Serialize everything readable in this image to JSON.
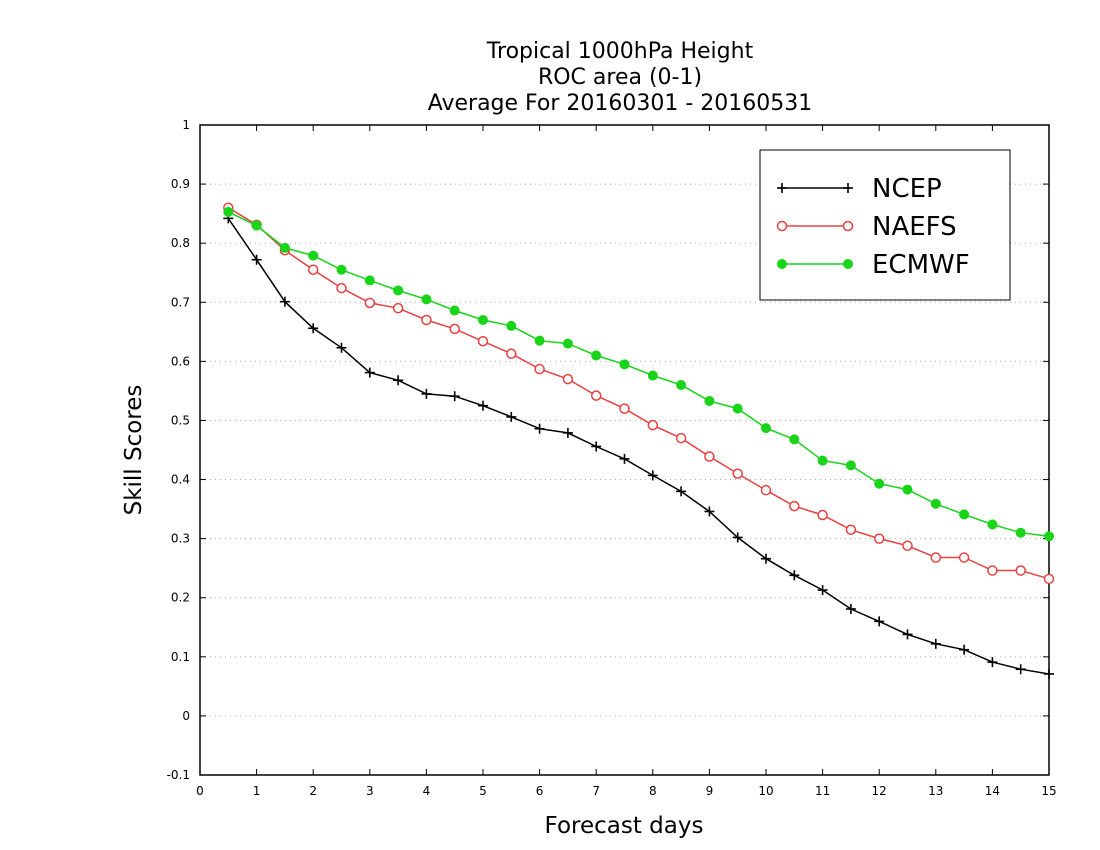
{
  "chart_data": {
    "type": "line",
    "title_lines": [
      "Tropical 1000hPa Height",
      "ROC area (0-1)",
      "Average For 20160301 - 20160531"
    ],
    "xlabel": "Forecast days",
    "ylabel": "Skill Scores",
    "xlim": [
      0,
      15
    ],
    "ylim": [
      -0.1,
      1
    ],
    "x_ticks": [
      0,
      1,
      2,
      3,
      4,
      5,
      6,
      7,
      8,
      9,
      10,
      11,
      12,
      13,
      14,
      15
    ],
    "y_ticks": [
      -0.1,
      0,
      0.1,
      0.2,
      0.3,
      0.4,
      0.5,
      0.6,
      0.7,
      0.8,
      0.9,
      1
    ],
    "y_tick_labels": [
      "-0.1",
      "0",
      "0.1",
      "0.2",
      "0.3",
      "0.4",
      "0.5",
      "0.6",
      "0.7",
      "0.8",
      "0.9",
      "1"
    ],
    "grid": "horizontal dotted",
    "legend_position": "top-right",
    "x": [
      0.5,
      1,
      1.5,
      2,
      2.5,
      3,
      3.5,
      4,
      4.5,
      5,
      5.5,
      6,
      6.5,
      7,
      7.5,
      8,
      8.5,
      9,
      9.5,
      10,
      10.5,
      11,
      11.5,
      12,
      12.5,
      13,
      13.5,
      14,
      14.5,
      15
    ],
    "series": [
      {
        "name": "NCEP",
        "color": "#000000",
        "marker": "plus",
        "values": [
          0.842,
          0.772,
          0.701,
          0.656,
          0.623,
          0.581,
          0.568,
          0.545,
          0.541,
          0.525,
          0.506,
          0.486,
          0.479,
          0.456,
          0.435,
          0.407,
          0.38,
          0.346,
          0.302,
          0.266,
          0.238,
          0.213,
          0.181,
          0.16,
          0.138,
          0.122,
          0.112,
          0.091,
          0.079,
          0.071
        ]
      },
      {
        "name": "NAEFS",
        "color": "#e84040",
        "marker": "open-circle",
        "values": [
          0.86,
          0.831,
          0.788,
          0.755,
          0.724,
          0.699,
          0.69,
          0.67,
          0.655,
          0.634,
          0.613,
          0.587,
          0.57,
          0.542,
          0.52,
          0.492,
          0.47,
          0.439,
          0.41,
          0.382,
          0.355,
          0.34,
          0.315,
          0.3,
          0.288,
          0.268,
          0.268,
          0.246,
          0.246,
          0.232
        ]
      },
      {
        "name": "ECMWF",
        "color": "#19d419",
        "marker": "filled-circle",
        "values": [
          0.853,
          0.83,
          0.792,
          0.779,
          0.755,
          0.737,
          0.72,
          0.705,
          0.686,
          0.67,
          0.66,
          0.635,
          0.63,
          0.61,
          0.595,
          0.576,
          0.56,
          0.533,
          0.52,
          0.487,
          0.468,
          0.432,
          0.424,
          0.393,
          0.383,
          0.359,
          0.341,
          0.324,
          0.31,
          0.304
        ]
      }
    ]
  }
}
